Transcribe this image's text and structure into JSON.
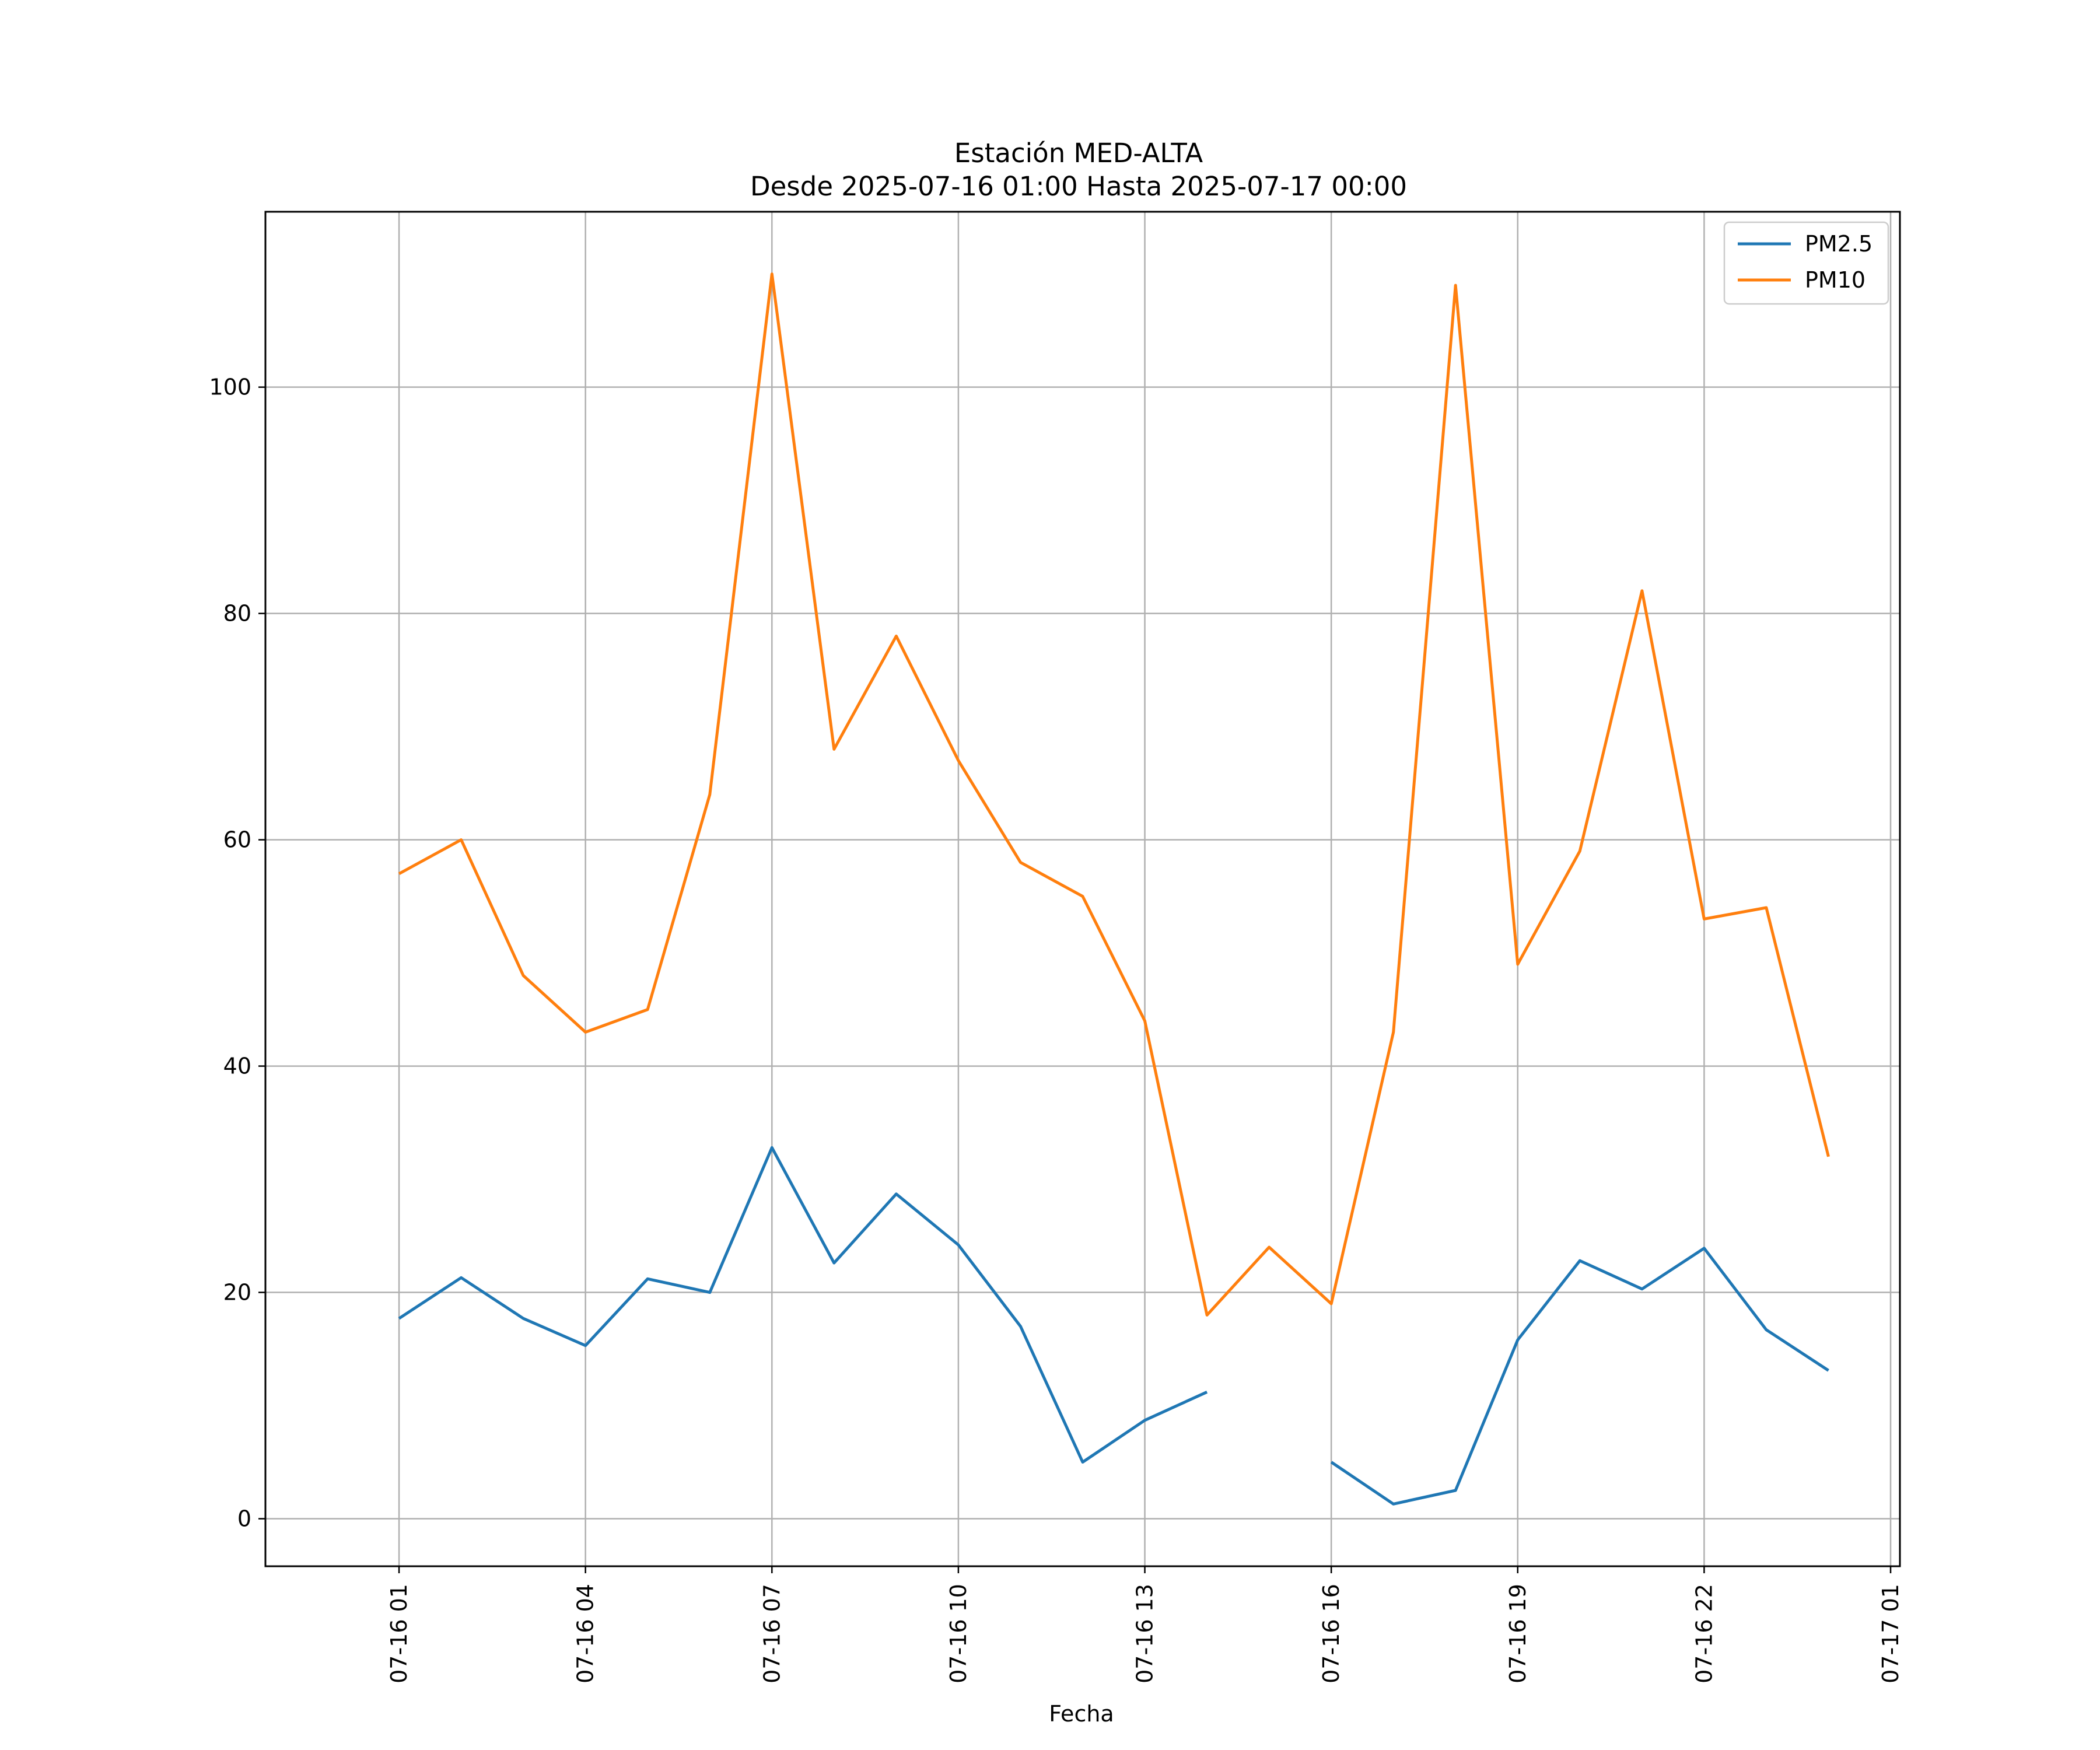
{
  "chart_data": {
    "type": "line",
    "title": "Estación MED-ALTA",
    "subtitle": "Desde 2025-07-16 01:00 Hasta 2025-07-17 00:00",
    "xlabel": "Fecha",
    "ylabel": "",
    "x": [
      "2025-07-16 01:00",
      "2025-07-16 02:00",
      "2025-07-16 03:00",
      "2025-07-16 04:00",
      "2025-07-16 05:00",
      "2025-07-16 06:00",
      "2025-07-16 07:00",
      "2025-07-16 08:00",
      "2025-07-16 09:00",
      "2025-07-16 10:00",
      "2025-07-16 11:00",
      "2025-07-16 12:00",
      "2025-07-16 13:00",
      "2025-07-16 14:00",
      "2025-07-16 15:00",
      "2025-07-16 16:00",
      "2025-07-16 17:00",
      "2025-07-16 18:00",
      "2025-07-16 19:00",
      "2025-07-16 20:00",
      "2025-07-16 21:00",
      "2025-07-16 22:00",
      "2025-07-16 23:00",
      "2025-07-17 00:00"
    ],
    "series": [
      {
        "name": "PM2.5",
        "color": "#1f77b4",
        "values": [
          17.7,
          21.3,
          17.7,
          15.3,
          21.2,
          20,
          32.8,
          22.6,
          28.7,
          24.2,
          17,
          5,
          8.7,
          11.2,
          null,
          5,
          1.3,
          2.5,
          15.8,
          22.8,
          20.3,
          23.9,
          16.7,
          13.1
        ]
      },
      {
        "name": "PM10",
        "color": "#ff7f0e",
        "values": [
          57,
          60,
          48,
          43,
          45,
          64,
          110,
          68,
          78,
          67,
          58,
          55,
          44,
          18,
          24,
          19,
          43,
          109,
          49,
          59,
          82,
          53,
          54,
          32
        ]
      }
    ],
    "xticks": [
      "07-16 01",
      "07-16 04",
      "07-16 07",
      "07-16 10",
      "07-16 13",
      "07-16 16",
      "07-16 19",
      "07-16 22",
      "07-17 01"
    ],
    "yticks": [
      0,
      20,
      40,
      60,
      80,
      100
    ],
    "ylim": [
      -4.2,
      115.5
    ],
    "xlim": [
      "2025-07-15 22:51",
      "2025-07-17 01:09"
    ],
    "grid": true,
    "legend_position": "top-right"
  }
}
